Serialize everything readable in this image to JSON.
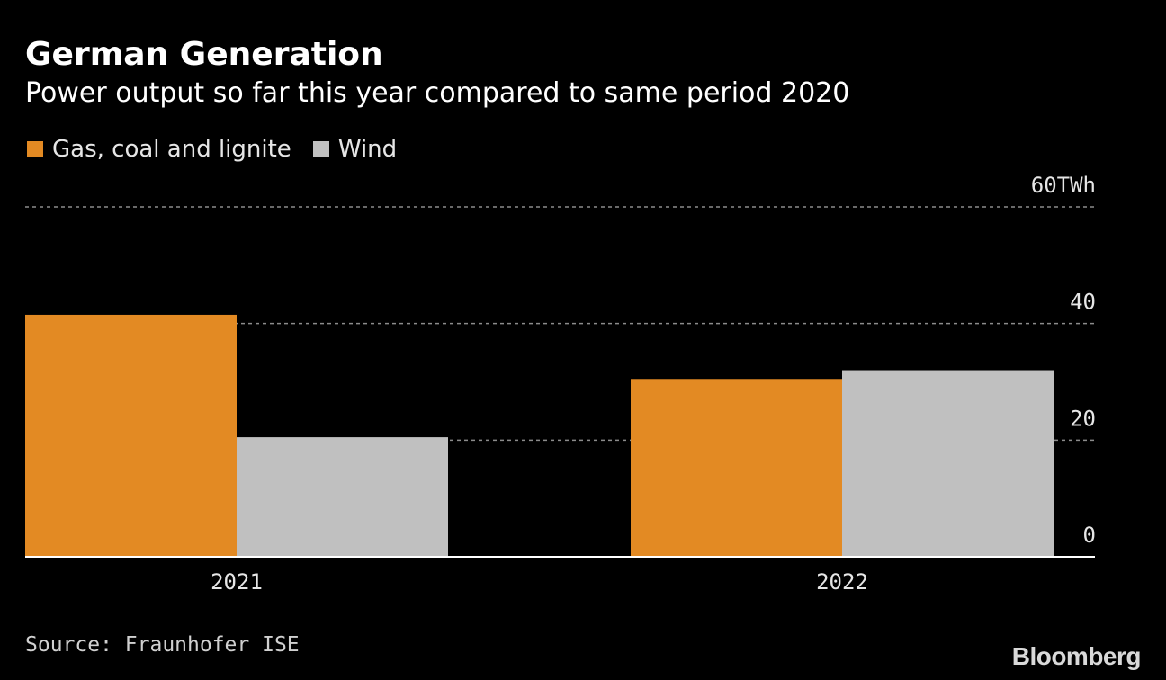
{
  "title": "German Generation",
  "subtitle": "Power output so far this year compared to same period 2020",
  "source": "Source: Fraunhofer ISE",
  "brand": "Bloomberg",
  "colors": {
    "gas": "#E38A23",
    "wind": "#C0C0C0",
    "grid": "#8c8c8c",
    "baseline": "#ffffff"
  },
  "chart_data": {
    "type": "bar",
    "categories": [
      "2021",
      "2022"
    ],
    "series": [
      {
        "name": "Gas, coal and lignite",
        "values": [
          41.5,
          30.5
        ]
      },
      {
        "name": "Wind",
        "values": [
          20.5,
          32
        ]
      }
    ],
    "yticks": [
      {
        "value": 60,
        "label": "60TWh"
      },
      {
        "value": 40,
        "label": "40"
      },
      {
        "value": 20,
        "label": "20"
      },
      {
        "value": 0,
        "label": "0"
      }
    ],
    "ylim": [
      0,
      60
    ],
    "legend": "top-left",
    "grid": true
  }
}
